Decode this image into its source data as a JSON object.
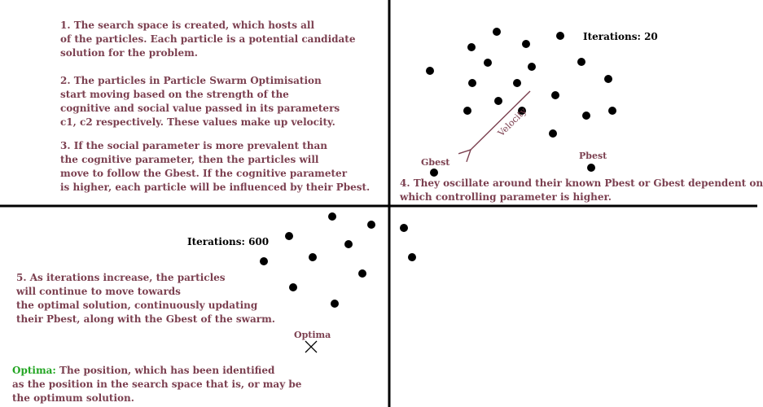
{
  "colors": {
    "text": "#7b3f4f",
    "term": "#22a522",
    "ink": "#000000",
    "arrow": "#7b3f4f"
  },
  "steps": {
    "s1": "1. The search space is created, which hosts all\nof the particles. Each particle is a potential candidate\nsolution for the problem.",
    "s2": "2. The particles in Particle Swarm Optimisation\nstart moving based on the strength of the\ncognitive and social value passed in its parameters\nc1, c2 respectively. These values make up velocity.",
    "s3": "3. If the social parameter is more prevalent than\nthe cognitive parameter, then the particles will\nmove to follow the Gbest. If the cognitive parameter\nis higher, each particle will be influenced by their Pbest.",
    "s4": "4. They oscillate around their known Pbest or Gbest dependent on\nwhich controlling parameter is higher.",
    "s5": "5. As iterations increase, the particles\nwill continue to move towards\nthe optimal solution, continuously updating\ntheir Pbest, along with the Gbest of the swarm."
  },
  "labels": {
    "iter_top": "Iterations: 20",
    "iter_bottom": "Iterations: 600",
    "gbest": "Gbest",
    "pbest": "Pbest",
    "velocity": "Velocity",
    "optima": "Optima"
  },
  "definition": {
    "term": "Optima:",
    "text": " The position, which has been identified\nas the position in the search space that is, or may be\nthe optimum solution."
  }
}
